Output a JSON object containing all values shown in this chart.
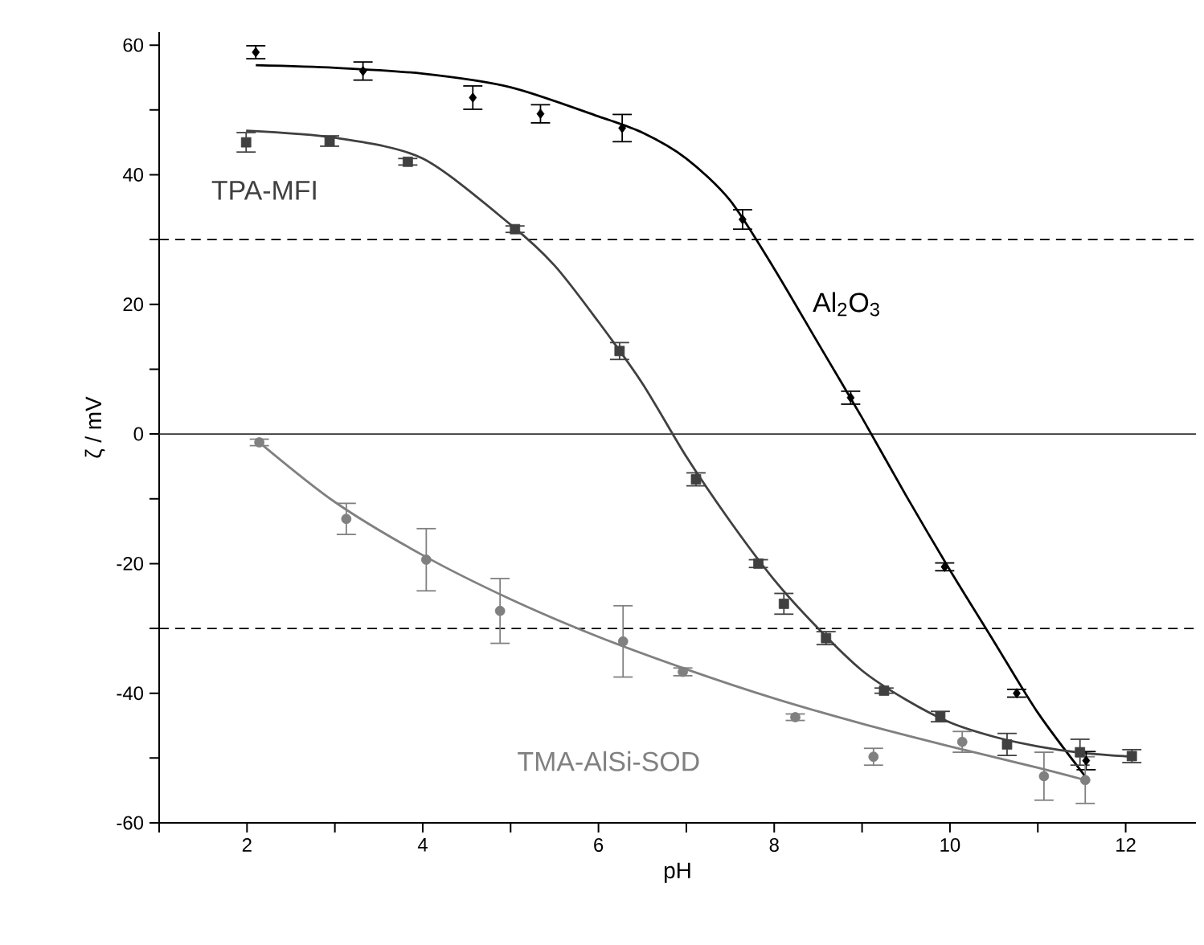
{
  "chart_data": {
    "type": "scatter",
    "xlabel": "pH",
    "ylabel": "ζ / mV",
    "xlim": [
      1,
      12.8
    ],
    "ylim": [
      -60,
      62
    ],
    "xticks": [
      {
        "value": 1,
        "label": null
      },
      2,
      {
        "value": 3,
        "label": null
      },
      4,
      {
        "value": 5,
        "label": null
      },
      6,
      {
        "value": 7,
        "label": null
      },
      8,
      {
        "value": 9,
        "label": null
      },
      10,
      {
        "value": 11,
        "label": null
      },
      12
    ],
    "yticks": [
      -60,
      {
        "value": -50,
        "label": null
      },
      -40,
      {
        "value": -30,
        "label": null
      },
      -20,
      {
        "value": -10,
        "label": null
      },
      0,
      {
        "value": 10,
        "label": null
      },
      20,
      {
        "value": 30,
        "label": null
      },
      40,
      {
        "value": 50,
        "label": null
      },
      60
    ],
    "ref_lines": [
      {
        "axis": "y",
        "value": 30,
        "line_style": "dashed",
        "color": "#000000"
      },
      {
        "axis": "y",
        "value": -30,
        "line_style": "dashed",
        "color": "#000000"
      },
      {
        "axis": "y",
        "value": 0,
        "line_style": "solid",
        "color": "#333333"
      }
    ],
    "series": [
      {
        "name": "Al$_{2}$O$_{3}$",
        "marker": "diamond",
        "color": "#000000",
        "x": [
          2.1,
          3.32,
          4.57,
          5.34,
          6.27,
          7.64,
          8.87,
          9.94,
          10.76,
          11.55
        ],
        "values": [
          58.9,
          56.0,
          51.9,
          49.4,
          47.2,
          33.1,
          5.6,
          -20.5,
          -40.0,
          -50.4
        ],
        "errors": [
          1,
          1.4,
          1.8,
          1.4,
          2.1,
          1.5,
          1.0,
          0.6,
          0.6,
          1.4
        ]
      },
      {
        "name": "TPA-MFI",
        "marker": "square",
        "color": "#404040",
        "x": [
          1.99,
          2.94,
          3.83,
          5.05,
          6.24,
          7.11,
          7.82,
          8.11,
          8.59,
          9.25,
          9.89,
          10.65,
          11.48,
          12.07
        ],
        "values": [
          45.0,
          45.2,
          42.0,
          31.6,
          12.8,
          -7.0,
          -20.0,
          -26.2,
          -31.5,
          -39.6,
          -43.6,
          -47.9,
          -49.1,
          -49.7
        ],
        "errors": [
          1.5,
          0.8,
          0.5,
          0.5,
          1.3,
          1.0,
          0.6,
          1.6,
          1.0,
          0.4,
          0.8,
          1.7,
          2.0,
          1.0
        ]
      },
      {
        "name": "TMA-AlSi-SOD",
        "marker": "circle",
        "color": "#808080",
        "x": [
          2.14,
          3.13,
          4.04,
          4.88,
          6.28,
          6.96,
          8.24,
          9.13,
          10.14,
          11.07,
          11.54
        ],
        "values": [
          -1.3,
          -13.1,
          -19.4,
          -27.3,
          -32.0,
          -36.7,
          -43.7,
          -49.8,
          -47.5,
          -52.8,
          -53.4
        ],
        "errors": [
          0.5,
          2.4,
          4.8,
          5.0,
          5.5,
          0.6,
          0.5,
          1.3,
          1.6,
          3.7,
          3.6
        ]
      },
      {
        "type": "line",
        "color": "#000000",
        "x": [
          2.1,
          3,
          4,
          5,
          6,
          6.5,
          7,
          7.5,
          8,
          8.5,
          9,
          9.5,
          10,
          10.5,
          11,
          11.55
        ],
        "values": [
          56.9,
          56.5,
          55.6,
          53.5,
          49.0,
          46.5,
          42.5,
          36.0,
          25.5,
          14.0,
          2.5,
          -9.5,
          -21.0,
          -32.0,
          -43.0,
          -53.0
        ]
      },
      {
        "type": "line",
        "color": "#404040",
        "x": [
          1.99,
          3,
          4,
          5,
          5.5,
          6,
          6.5,
          7,
          7.5,
          8,
          8.5,
          9,
          9.5,
          10,
          10.5,
          11,
          11.5,
          12.07
        ],
        "values": [
          46.8,
          45.7,
          42.5,
          32.3,
          26.0,
          17.3,
          7.8,
          -3.5,
          -13.5,
          -22.5,
          -30.0,
          -36.5,
          -41.0,
          -44.5,
          -46.7,
          -48.2,
          -49.2,
          -49.8
        ]
      },
      {
        "type": "line",
        "color": "#808080",
        "x": [
          2.14,
          3,
          4,
          5,
          6,
          7,
          8,
          9,
          10,
          11,
          11.54
        ],
        "values": [
          -1.3,
          -10.5,
          -18.7,
          -25.5,
          -31.3,
          -36.3,
          -40.8,
          -44.7,
          -48.2,
          -51.5,
          -53.4
        ]
      }
    ]
  }
}
